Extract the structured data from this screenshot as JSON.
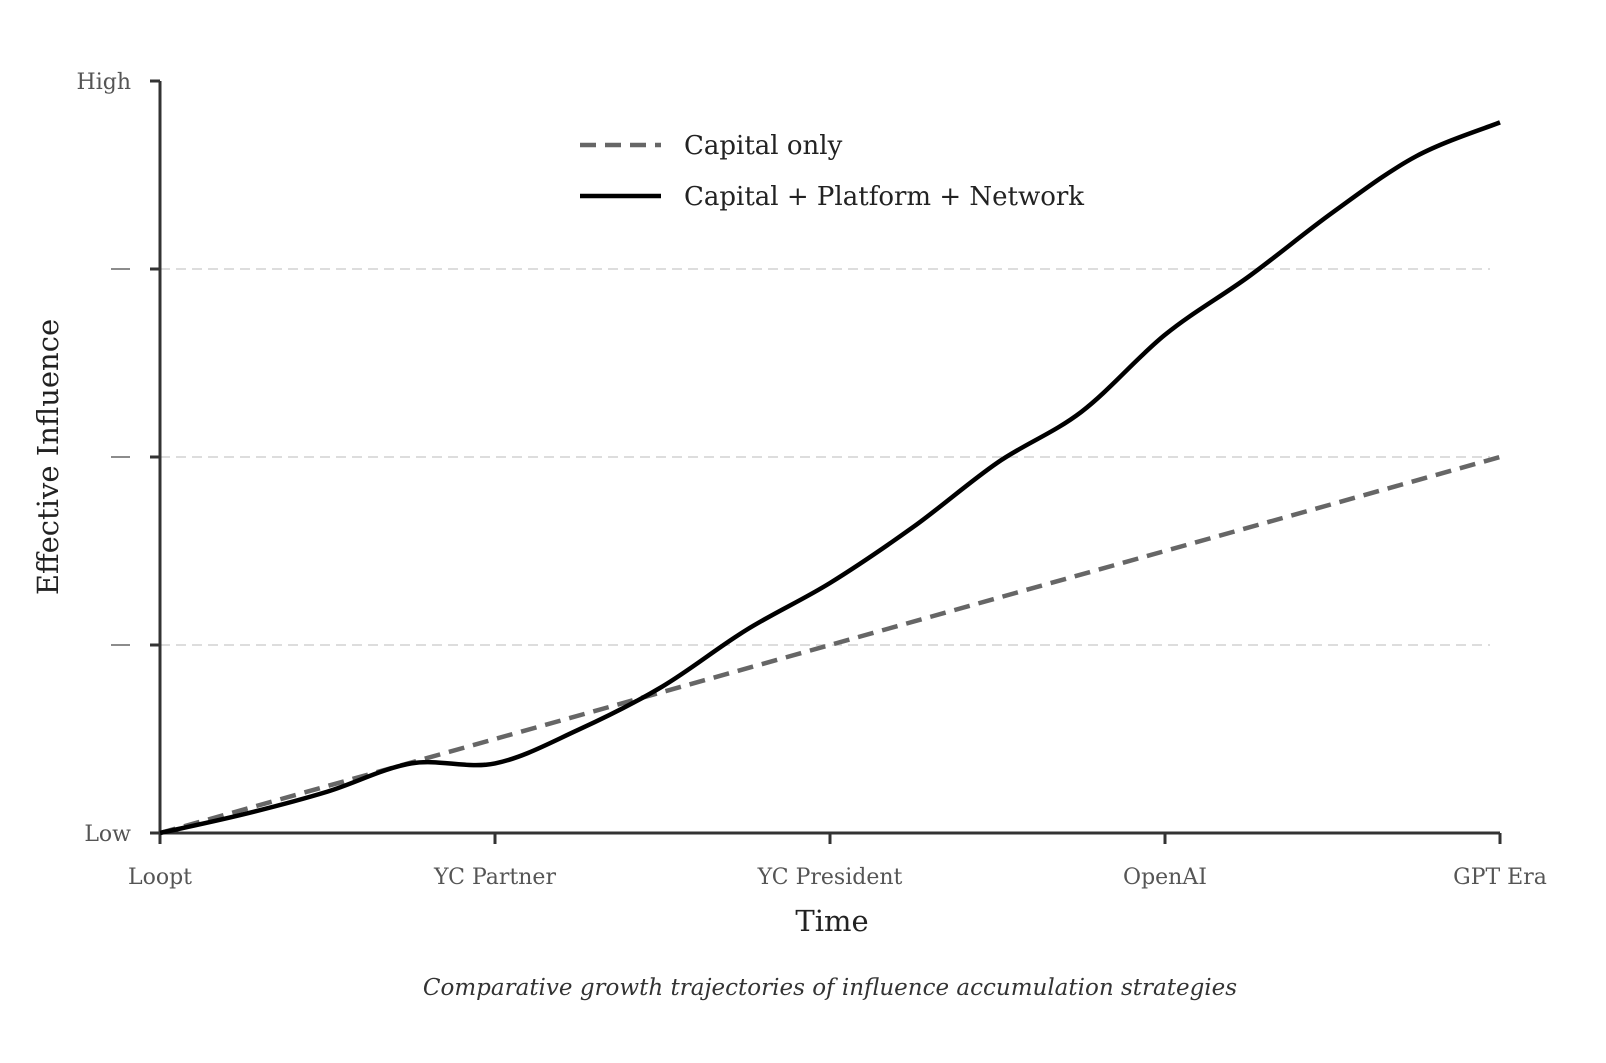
{
  "chart_data": {
    "type": "line",
    "categories": [
      "Loopt",
      "YC Partner",
      "YC President",
      "OpenAI",
      "GPT Era"
    ],
    "x": [
      0,
      1,
      2,
      3,
      4
    ],
    "y_tick_labels": [
      "Low",
      "",
      "",
      "",
      "High"
    ],
    "ylim": [
      0,
      4
    ],
    "xlabel": "Time",
    "ylabel": "Effective Influence",
    "caption": "Comparative growth trajectories of influence accumulation strategies",
    "grid": "horizontal dashed",
    "legend_position": "top-center",
    "series": [
      {
        "name": "Capital only",
        "style": "dashed",
        "color": "#666666",
        "points": [
          [
            0,
            0
          ],
          [
            4,
            2
          ]
        ]
      },
      {
        "name": "Capital + Platform + Network",
        "style": "solid",
        "color": "#000000",
        "points": [
          [
            0,
            0
          ],
          [
            0.25,
            0.1
          ],
          [
            0.5,
            0.22
          ],
          [
            0.75,
            0.37
          ],
          [
            1,
            0.37
          ],
          [
            1,
            0.37
          ],
          [
            1.25,
            0.55
          ],
          [
            1.5,
            0.78
          ],
          [
            1.75,
            1.08
          ],
          [
            2,
            1.33
          ],
          [
            2.25,
            1.63
          ],
          [
            2.5,
            1.97
          ],
          [
            2.75,
            2.24
          ],
          [
            3,
            2.65
          ],
          [
            3.25,
            2.96
          ],
          [
            3.5,
            3.3
          ],
          [
            3.75,
            3.6
          ],
          [
            4,
            3.78
          ]
        ]
      }
    ]
  }
}
